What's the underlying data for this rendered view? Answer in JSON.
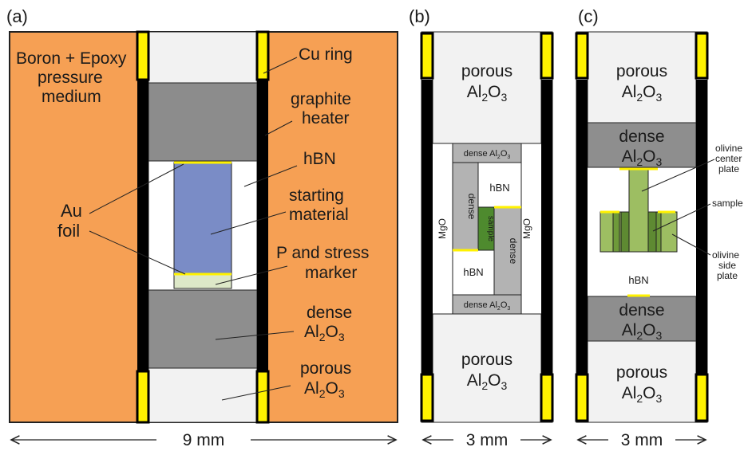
{
  "colors": {
    "boron_epoxy": "#F6A054",
    "porous_al2o3": "#F2F2F2",
    "dense_al2o3": "#8E8E8E",
    "graphite": "#8C8C8C",
    "hbn": "#FFFFFF",
    "cu_ring": "#FFF200",
    "heater_black": "#000000",
    "starting_material": "#7A8CC6",
    "stress_marker": "#DDE8C8",
    "au_foil": "#FFF200",
    "dense_gray": "#B3B3B3",
    "sample_green": "#4E8A2E",
    "olivine": "#9DBE62",
    "olivine_dark": "#6E9A3A"
  },
  "panel_a": {
    "label": "(a)",
    "boron_label_1": "Boron + Epoxy",
    "boron_label_2": "pressure",
    "boron_label_3": "medium",
    "cu_ring": "Cu ring",
    "graphite_1": "graphite",
    "graphite_2": "heater",
    "hbn": "hBN",
    "starting_1": "starting",
    "starting_2": "material",
    "au_1": "Au",
    "au_2": "foil",
    "marker_1": "P and stress",
    "marker_2": "marker",
    "dense_1": "dense",
    "dense_al": "Al",
    "dense_sub2": "2",
    "dense_o": "O",
    "dense_sub3": "3",
    "porous_1": "porous",
    "porous_al": "Al",
    "porous_sub2": "2",
    "porous_o": "O",
    "porous_sub3": "3",
    "scale": "9 mm"
  },
  "panel_b": {
    "label": "(b)",
    "porous_top": "porous",
    "porous_bottom": "porous",
    "al": "Al",
    "sub2": "2",
    "o": "O",
    "sub3": "3",
    "dense_small": "dense Al",
    "dense_small_sub2": "2",
    "dense_small_o": "O",
    "dense_small_sub3": "3",
    "dense": "dense",
    "hbn": "hBN",
    "sample": "sample",
    "mgo": "MgO",
    "scale": "3 mm"
  },
  "panel_c": {
    "label": "(c)",
    "porous": "porous",
    "dense": "dense",
    "al": "Al",
    "sub2": "2",
    "o": "O",
    "sub3": "3",
    "hbn": "hBN",
    "olivine_center_1": "olivine",
    "olivine_center_2": "center",
    "olivine_center_3": "plate",
    "sample": "sample",
    "olivine_side_1": "olivine",
    "olivine_side_2": "side",
    "olivine_side_3": "plate",
    "scale": "3 mm"
  }
}
